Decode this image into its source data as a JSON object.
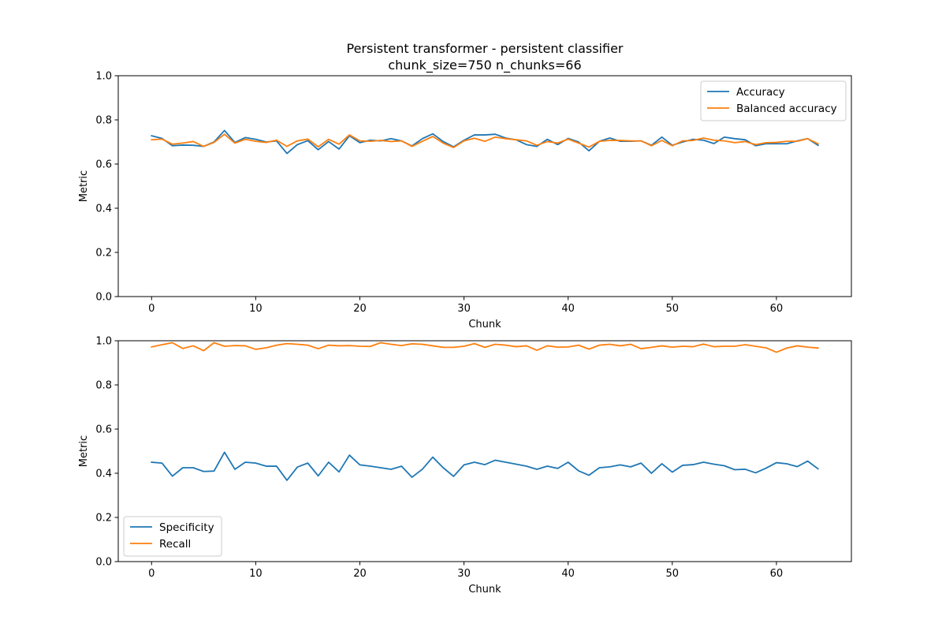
{
  "figure": {
    "title_lines": [
      "Persistent transformer - persistent classifier",
      "chunk_size=750 n_chunks=66"
    ]
  },
  "chart_data": [
    {
      "type": "line",
      "xlabel": "Chunk",
      "ylabel": "Metric",
      "xlim": [
        -3.2,
        67.2
      ],
      "ylim": [
        0.0,
        1.0
      ],
      "xticks": [
        0,
        10,
        20,
        30,
        40,
        50,
        60
      ],
      "yticks": [
        0.0,
        0.2,
        0.4,
        0.6,
        0.8,
        1.0
      ],
      "xtick_labels": [
        "0",
        "10",
        "20",
        "30",
        "40",
        "50",
        "60"
      ],
      "ytick_labels": [
        "0.0",
        "0.2",
        "0.4",
        "0.6",
        "0.8",
        "1.0"
      ],
      "grid": false,
      "legend_position": "upper right",
      "x_start": 0,
      "series": [
        {
          "name": "Accuracy",
          "color": "#1f77b4",
          "values": [
            0.728,
            0.716,
            0.683,
            0.686,
            0.685,
            0.68,
            0.7,
            0.752,
            0.698,
            0.72,
            0.712,
            0.7,
            0.705,
            0.648,
            0.688,
            0.706,
            0.665,
            0.702,
            0.668,
            0.728,
            0.697,
            0.708,
            0.705,
            0.715,
            0.705,
            0.682,
            0.715,
            0.737,
            0.702,
            0.678,
            0.708,
            0.732,
            0.732,
            0.735,
            0.718,
            0.71,
            0.688,
            0.68,
            0.712,
            0.688,
            0.716,
            0.7,
            0.66,
            0.703,
            0.718,
            0.703,
            0.703,
            0.705,
            0.685,
            0.722,
            0.685,
            0.7,
            0.712,
            0.708,
            0.693,
            0.722,
            0.715,
            0.71,
            0.683,
            0.692,
            0.692,
            0.692,
            0.705,
            0.715,
            0.685
          ]
        },
        {
          "name": "Balanced accuracy",
          "color": "#ff7f0e",
          "values": [
            0.71,
            0.713,
            0.69,
            0.695,
            0.702,
            0.68,
            0.698,
            0.735,
            0.695,
            0.712,
            0.703,
            0.698,
            0.708,
            0.68,
            0.705,
            0.713,
            0.678,
            0.712,
            0.69,
            0.732,
            0.705,
            0.703,
            0.707,
            0.702,
            0.705,
            0.68,
            0.703,
            0.725,
            0.695,
            0.675,
            0.705,
            0.717,
            0.703,
            0.722,
            0.715,
            0.71,
            0.705,
            0.685,
            0.702,
            0.695,
            0.713,
            0.695,
            0.677,
            0.703,
            0.707,
            0.707,
            0.705,
            0.705,
            0.683,
            0.707,
            0.683,
            0.705,
            0.707,
            0.718,
            0.708,
            0.705,
            0.697,
            0.702,
            0.688,
            0.697,
            0.698,
            0.703,
            0.703,
            0.715,
            0.692
          ]
        }
      ]
    },
    {
      "type": "line",
      "xlabel": "Chunk",
      "ylabel": "Metric",
      "xlim": [
        -3.2,
        67.2
      ],
      "ylim": [
        0.0,
        1.0
      ],
      "xticks": [
        0,
        10,
        20,
        30,
        40,
        50,
        60
      ],
      "yticks": [
        0.0,
        0.2,
        0.4,
        0.6,
        0.8,
        1.0
      ],
      "xtick_labels": [
        "0",
        "10",
        "20",
        "30",
        "40",
        "50",
        "60"
      ],
      "ytick_labels": [
        "0.0",
        "0.2",
        "0.4",
        "0.6",
        "0.8",
        "1.0"
      ],
      "grid": false,
      "legend_position": "lower left",
      "x_start": 0,
      "series": [
        {
          "name": "Specificity",
          "color": "#1f77b4",
          "values": [
            0.45,
            0.446,
            0.387,
            0.425,
            0.425,
            0.408,
            0.41,
            0.495,
            0.418,
            0.45,
            0.446,
            0.432,
            0.432,
            0.368,
            0.428,
            0.446,
            0.388,
            0.45,
            0.406,
            0.482,
            0.438,
            0.432,
            0.425,
            0.418,
            0.432,
            0.382,
            0.418,
            0.473,
            0.425,
            0.386,
            0.438,
            0.45,
            0.439,
            0.459,
            0.45,
            0.441,
            0.432,
            0.418,
            0.432,
            0.422,
            0.45,
            0.411,
            0.391,
            0.425,
            0.429,
            0.438,
            0.429,
            0.446,
            0.4,
            0.443,
            0.405,
            0.436,
            0.439,
            0.45,
            0.441,
            0.434,
            0.416,
            0.418,
            0.402,
            0.423,
            0.448,
            0.443,
            0.43,
            0.455,
            0.42
          ]
        },
        {
          "name": "Recall",
          "color": "#ff7f0e",
          "values": [
            0.972,
            0.982,
            0.991,
            0.965,
            0.977,
            0.955,
            0.991,
            0.975,
            0.978,
            0.977,
            0.961,
            0.968,
            0.98,
            0.987,
            0.984,
            0.98,
            0.964,
            0.98,
            0.977,
            0.978,
            0.975,
            0.974,
            0.991,
            0.984,
            0.978,
            0.986,
            0.984,
            0.977,
            0.97,
            0.97,
            0.975,
            0.987,
            0.97,
            0.984,
            0.98,
            0.973,
            0.977,
            0.957,
            0.977,
            0.971,
            0.972,
            0.98,
            0.962,
            0.98,
            0.984,
            0.977,
            0.984,
            0.964,
            0.97,
            0.977,
            0.971,
            0.975,
            0.973,
            0.985,
            0.973,
            0.975,
            0.975,
            0.982,
            0.975,
            0.968,
            0.948,
            0.967,
            0.977,
            0.971,
            0.967
          ]
        }
      ]
    }
  ]
}
